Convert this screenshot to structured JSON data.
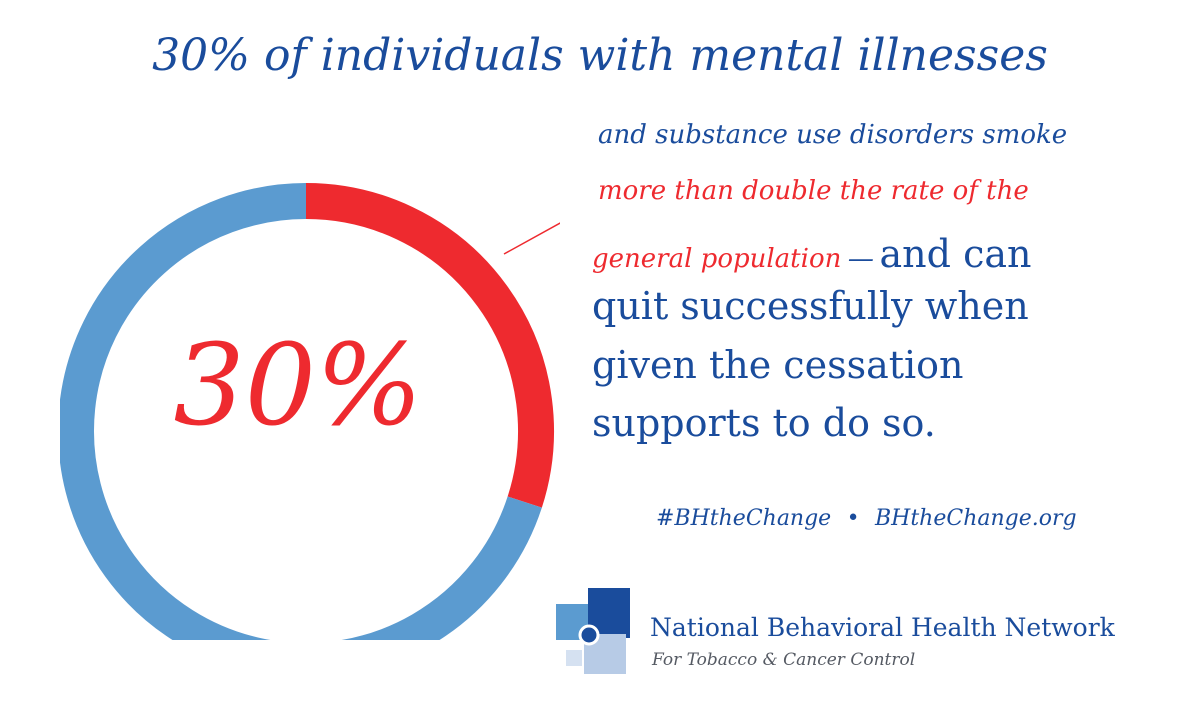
{
  "headline": "30% of individuals with mental illnesses",
  "body": {
    "line1": "and substance use disorders smoke",
    "line2": "more than double the rate of the",
    "line3_red": "general population",
    "line3_dash": "—",
    "line3_blue": "and can",
    "line4": "quit successfully when",
    "line5": "given the cessation",
    "line6": "supports to do so."
  },
  "social": {
    "hashtag": "#BHtheChange",
    "bullet": "•",
    "website": "BHtheChange.org"
  },
  "organization": {
    "name": "National Behavioral Health Network",
    "subtitle": "For Tobacco & Cancer Control"
  },
  "colors": {
    "blue_text": "#1a4c9c",
    "highlight_red": "#ee2a2f",
    "ring_blue": "#5b9bd0",
    "ring_red": "#ee2a2f"
  },
  "chart_data": {
    "type": "pie",
    "style": "donut",
    "center_label": "30%",
    "slices": [
      {
        "value": 30,
        "color": "#ee2a2f"
      },
      {
        "value": 70,
        "color": "#5b9bd0"
      }
    ]
  }
}
